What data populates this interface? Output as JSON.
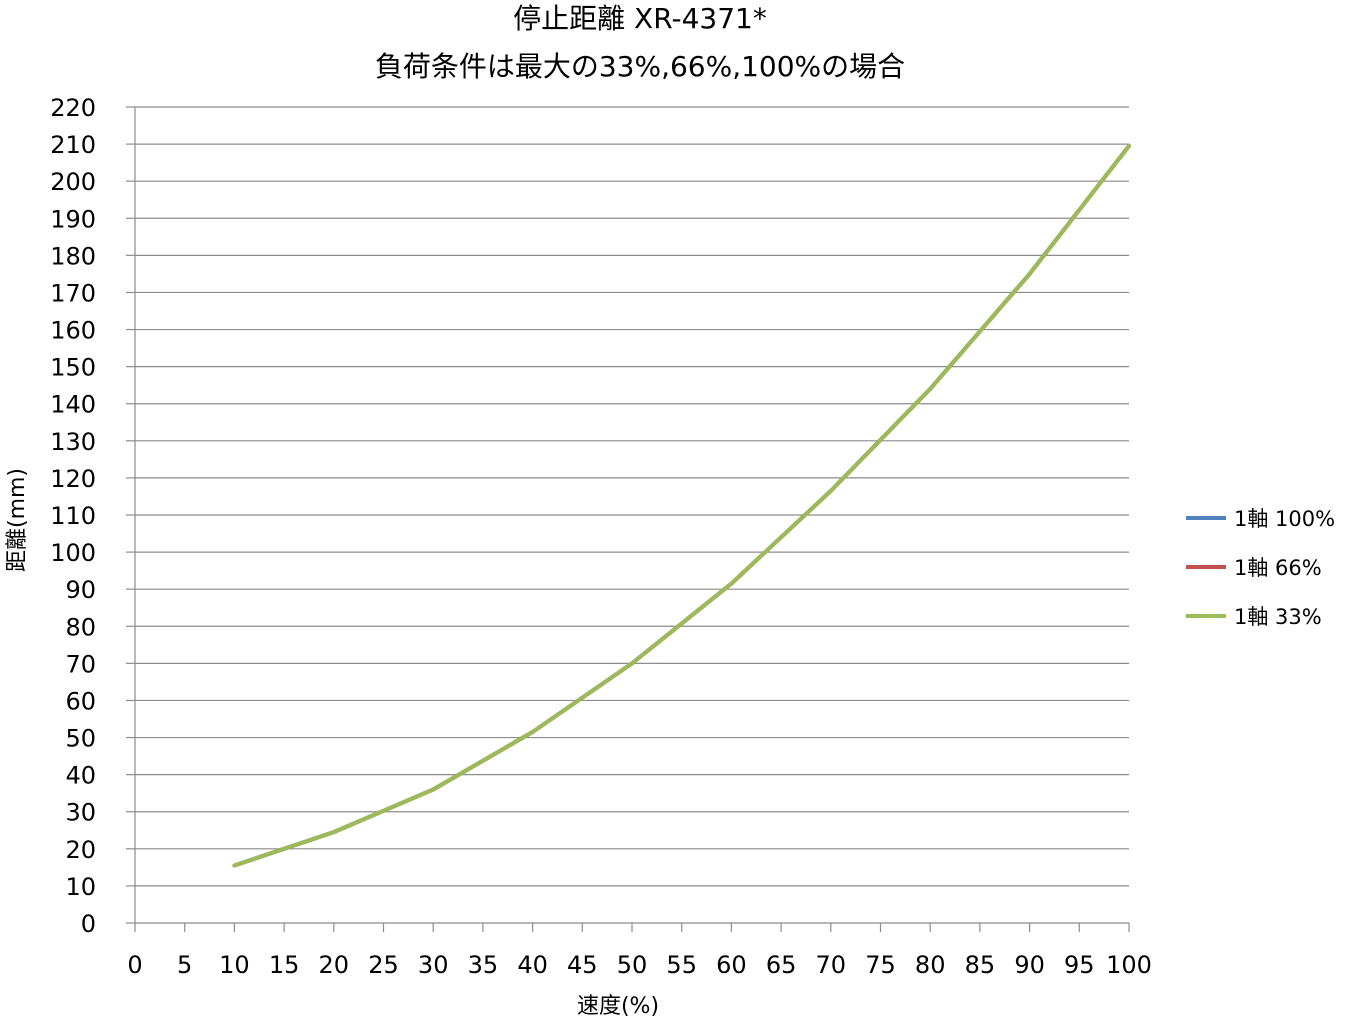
{
  "chart_data": {
    "type": "line",
    "title": "停止距離 XR-4371*",
    "subtitle": "負荷条件は最大の33%,66%,100%の場合",
    "xlabel": "速度(%)",
    "ylabel": "距離(mm)",
    "xlim": [
      0,
      100
    ],
    "ylim": [
      0,
      220
    ],
    "xticks": [
      "0",
      "5",
      "10",
      "15",
      "20",
      "25",
      "30",
      "35",
      "40",
      "45",
      "50",
      "55",
      "60",
      "65",
      "70",
      "75",
      "80",
      "85",
      "90",
      "95",
      "100"
    ],
    "yticks": [
      "0",
      "10",
      "20",
      "30",
      "40",
      "50",
      "60",
      "70",
      "80",
      "90",
      "100",
      "110",
      "120",
      "130",
      "140",
      "150",
      "160",
      "170",
      "180",
      "190",
      "200",
      "210",
      "220"
    ],
    "grid": "horizontal",
    "legend_position": "right",
    "x": [
      10,
      20,
      30,
      40,
      50,
      60,
      70,
      80,
      90,
      100
    ],
    "series": [
      {
        "name": "1軸 100%",
        "color": "#4F81BD",
        "values": [
          15.5,
          24.5,
          36,
          51.5,
          70,
          91.5,
          116.5,
          144,
          175,
          209.5
        ]
      },
      {
        "name": "1軸 66%",
        "color": "#C0504D",
        "values": [
          15.5,
          24.5,
          36,
          51.5,
          70,
          91.5,
          116.5,
          144,
          175,
          209.5
        ]
      },
      {
        "name": "1軸 33%",
        "color": "#9BBB59",
        "values": [
          15.5,
          24.5,
          36,
          51.5,
          70,
          91.5,
          116.5,
          144,
          175,
          209.5
        ]
      }
    ]
  }
}
